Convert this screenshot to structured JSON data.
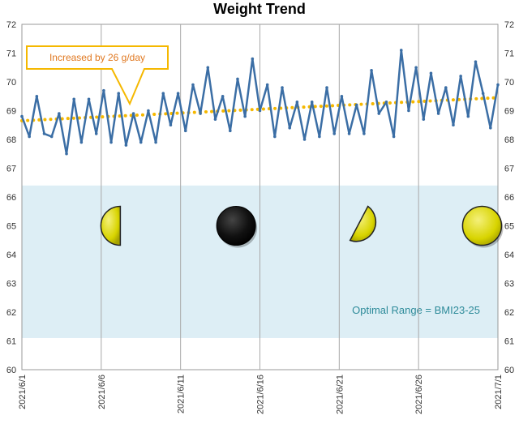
{
  "chart_data": {
    "type": "line",
    "title": "Weight Trend",
    "xlabel": "",
    "ylabel": "",
    "x_start": "2021/6/1",
    "x_end": "2021/7/1",
    "x_tick_labels": [
      "2021/6/1",
      "2021/6/6",
      "2021/6/11",
      "2021/6/16",
      "2021/6/21",
      "2021/6/26",
      "2021/7/1"
    ],
    "ylim": [
      60,
      72
    ],
    "y_ticks": [
      60,
      61,
      62,
      63,
      64,
      65,
      66,
      67,
      68,
      69,
      70,
      71,
      72
    ],
    "grid": "vertical",
    "secondary_y_axis": true,
    "series": [
      {
        "values": [
          68.8,
          68.1,
          69.5,
          68.2,
          68.1,
          68.9,
          67.5,
          69.4,
          67.9,
          69.4,
          68.2,
          69.7,
          67.9,
          69.6,
          67.8,
          68.9,
          67.9,
          69.0,
          67.9,
          69.6,
          68.5,
          69.6,
          68.3,
          69.9,
          68.9,
          70.5,
          68.7,
          69.5,
          68.3,
          70.1,
          68.8,
          70.8,
          69.0,
          69.9,
          68.1,
          69.8,
          68.4,
          69.3,
          68.0,
          69.3,
          68.1,
          69.8,
          68.2,
          69.5,
          68.2,
          69.2,
          68.2,
          70.4,
          68.9,
          69.3,
          68.1,
          71.1,
          69.0,
          70.5,
          68.7,
          70.3,
          68.9,
          69.8,
          68.5,
          70.2,
          68.8,
          70.7,
          69.6,
          68.4,
          69.9
        ],
        "color": "#3b6ea5"
      },
      {
        "values": [
          68.65,
          69.45
        ],
        "color": "#f5b800",
        "style": "dotted"
      }
    ],
    "annotations": [
      {
        "text": "Increased by 26 g/day",
        "type": "callout",
        "border_color": "#f5b800",
        "text_color": "#e07820"
      }
    ],
    "optimal_range": {
      "label": "Optimal Range = BMI23-25",
      "from": 61.1,
      "to": 66.4,
      "fill": "#ddeef5"
    },
    "moon_phases": [
      {
        "date_index": 6.0,
        "phase": "first-quarter",
        "y": 65.0
      },
      {
        "date_index": 13.5,
        "phase": "new",
        "y": 65.0
      },
      {
        "date_index": 21.5,
        "phase": "waning-crescent",
        "y": 65.0
      },
      {
        "date_index": 29.0,
        "phase": "full",
        "y": 65.0
      }
    ]
  }
}
